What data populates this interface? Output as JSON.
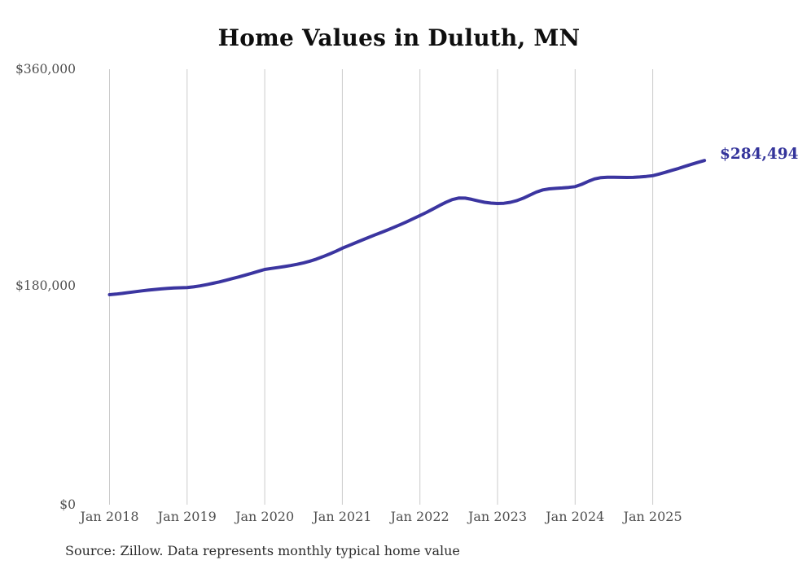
{
  "title": "Home Values in Duluth, MN",
  "end_label": "$284,494",
  "source_note": "Source: Zillow. Data represents monthly typical home value",
  "colors": {
    "line": "#3b35a0",
    "end_label": "#34349b",
    "gridline": "#cbcbcb",
    "axis_text": "#4f4f4f",
    "title_text": "#0e0e0e",
    "source_text": "#2d2d2d",
    "background": "#ffffff"
  },
  "chart_data": {
    "type": "line",
    "title": "Home Values in Duluth, MN",
    "series_name": "Monthly typical home value (Zillow ZHVI)",
    "unit": "USD",
    "grid": "vertical-only",
    "legend": "none",
    "ylim": [
      0,
      360000
    ],
    "y_tick_values": [
      0,
      180000,
      360000
    ],
    "y_tick_labels": [
      "$0",
      "$180,000",
      "$360,000"
    ],
    "x_tick_labels": [
      "Jan 2018",
      "Jan 2019",
      "Jan 2020",
      "Jan 2021",
      "Jan 2022",
      "Jan 2023",
      "Jan 2024",
      "Jan 2025"
    ],
    "final_value": 284494,
    "final_value_label": "$284,494",
    "x": [
      "Jan 2018",
      "Feb 2018",
      "Mar 2018",
      "Apr 2018",
      "May 2018",
      "Jun 2018",
      "Jul 2018",
      "Aug 2018",
      "Sep 2018",
      "Oct 2018",
      "Nov 2018",
      "Dec 2018",
      "Jan 2019",
      "Feb 2019",
      "Mar 2019",
      "Apr 2019",
      "May 2019",
      "Jun 2019",
      "Jul 2019",
      "Aug 2019",
      "Sep 2019",
      "Oct 2019",
      "Nov 2019",
      "Dec 2019",
      "Jan 2020",
      "Feb 2020",
      "Mar 2020",
      "Apr 2020",
      "May 2020",
      "Jun 2020",
      "Jul 2020",
      "Aug 2020",
      "Sep 2020",
      "Oct 2020",
      "Nov 2020",
      "Dec 2020",
      "Jan 2021",
      "Feb 2021",
      "Mar 2021",
      "Apr 2021",
      "May 2021",
      "Jun 2021",
      "Jul 2021",
      "Aug 2021",
      "Sep 2021",
      "Oct 2021",
      "Nov 2021",
      "Dec 2021",
      "Jan 2022",
      "Feb 2022",
      "Mar 2022",
      "Apr 2022",
      "May 2022",
      "Jun 2022",
      "Jul 2022",
      "Aug 2022",
      "Sep 2022",
      "Oct 2022",
      "Nov 2022",
      "Dec 2022",
      "Jan 2023",
      "Feb 2023",
      "Mar 2023",
      "Apr 2023",
      "May 2023",
      "Jun 2023",
      "Jul 2023",
      "Aug 2023",
      "Sep 2023",
      "Oct 2023",
      "Nov 2023",
      "Dec 2023",
      "Jan 2024",
      "Feb 2024",
      "Mar 2024",
      "Apr 2024",
      "May 2024",
      "Jun 2024",
      "Jul 2024",
      "Aug 2024",
      "Sep 2024",
      "Oct 2024",
      "Nov 2024",
      "Dec 2024",
      "Jan 2025",
      "Feb 2025",
      "Mar 2025",
      "Apr 2025",
      "May 2025",
      "Jun 2025",
      "Jul 2025",
      "Aug 2025",
      "Sep 2025"
    ],
    "values": [
      173600,
      174100,
      174700,
      175400,
      176100,
      176800,
      177400,
      177900,
      178400,
      178800,
      179100,
      179350,
      179500,
      180100,
      180900,
      181900,
      183000,
      184200,
      185500,
      186900,
      188300,
      189800,
      191300,
      192900,
      194500,
      195300,
      196000,
      196800,
      197700,
      198700,
      199900,
      201300,
      203000,
      205000,
      207200,
      209500,
      212000,
      214200,
      216400,
      218600,
      220800,
      222900,
      225000,
      227100,
      229300,
      231600,
      234000,
      236500,
      239000,
      241600,
      244400,
      247200,
      249900,
      252200,
      253500,
      253400,
      252400,
      251100,
      250000,
      249300,
      249000,
      249200,
      250000,
      251400,
      253400,
      255900,
      258400,
      260200,
      261100,
      261500,
      261800,
      262300,
      262900,
      264800,
      267200,
      269300,
      270400,
      270700,
      270700,
      270600,
      270500,
      270600,
      270900,
      271400,
      272000,
      273300,
      274800,
      276400,
      278000,
      279700,
      281400,
      283000,
      284494
    ]
  }
}
